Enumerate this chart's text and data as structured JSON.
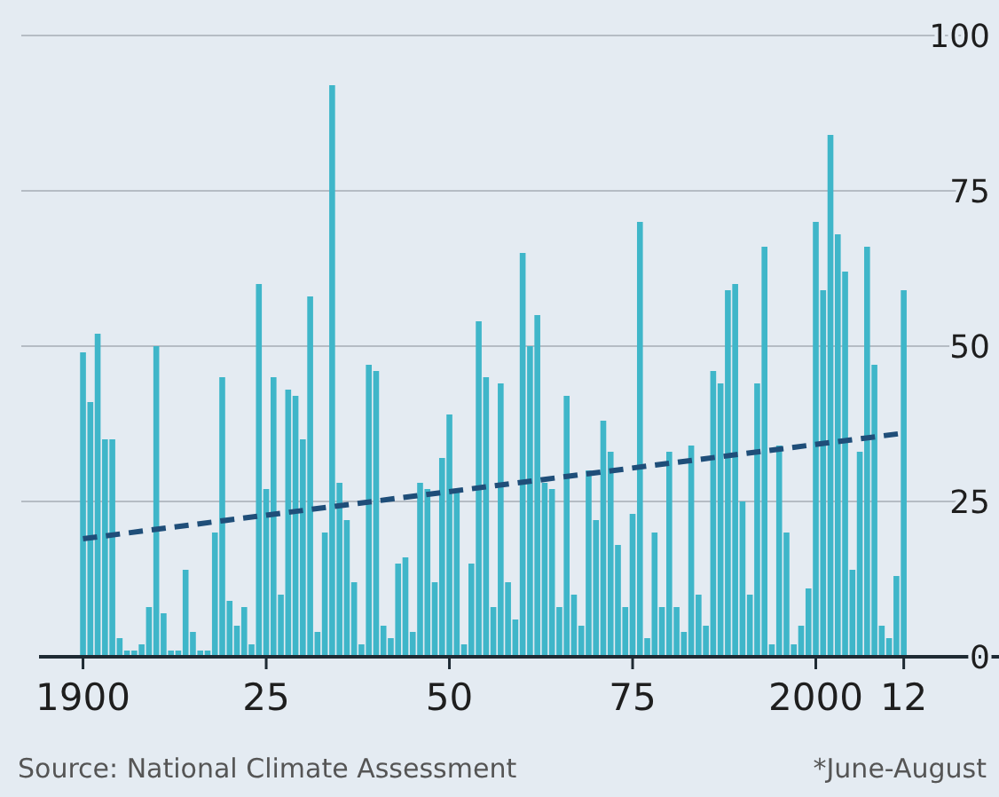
{
  "chart_data": {
    "type": "bar",
    "x": [
      1900,
      1901,
      1902,
      1903,
      1904,
      1905,
      1906,
      1907,
      1908,
      1909,
      1910,
      1911,
      1912,
      1913,
      1914,
      1915,
      1916,
      1917,
      1918,
      1919,
      1920,
      1921,
      1922,
      1923,
      1924,
      1925,
      1926,
      1927,
      1928,
      1929,
      1930,
      1931,
      1932,
      1933,
      1934,
      1935,
      1936,
      1937,
      1938,
      1939,
      1940,
      1941,
      1942,
      1943,
      1944,
      1945,
      1946,
      1947,
      1948,
      1949,
      1950,
      1951,
      1952,
      1953,
      1954,
      1955,
      1956,
      1957,
      1958,
      1959,
      1960,
      1961,
      1962,
      1963,
      1964,
      1965,
      1966,
      1967,
      1968,
      1969,
      1970,
      1971,
      1972,
      1973,
      1974,
      1975,
      1976,
      1977,
      1978,
      1979,
      1980,
      1981,
      1982,
      1983,
      1984,
      1985,
      1986,
      1987,
      1988,
      1989,
      1990,
      1991,
      1992,
      1993,
      1994,
      1995,
      1996,
      1997,
      1998,
      1999,
      2000,
      2001,
      2002,
      2003,
      2004,
      2005,
      2006,
      2007,
      2008,
      2009,
      2010,
      2011,
      2012
    ],
    "series": [
      {
        "color": "#3fb6c9",
        "values": [
          49,
          41,
          52,
          35,
          35,
          3,
          1,
          1,
          2,
          8,
          50,
          7,
          1,
          1,
          14,
          4,
          1,
          1,
          20,
          45,
          9,
          5,
          8,
          2,
          60,
          27,
          45,
          10,
          43,
          42,
          35,
          58,
          4,
          20,
          92,
          28,
          22,
          12,
          2,
          47,
          46,
          5,
          3,
          15,
          16,
          4,
          28,
          27,
          12,
          32,
          39,
          27,
          2,
          15,
          54,
          45,
          8,
          44,
          12,
          6,
          65,
          50,
          55,
          28,
          27,
          8,
          42,
          10,
          5,
          30,
          22,
          38,
          33,
          18,
          8,
          23,
          70,
          3,
          20,
          8,
          33,
          8,
          4,
          34,
          10,
          5,
          46,
          44,
          59,
          60,
          25,
          10,
          44,
          66,
          2,
          34,
          20,
          2,
          5,
          11,
          70,
          59,
          84,
          68,
          62,
          14,
          33,
          66,
          47,
          5,
          3,
          13,
          59
        ]
      },
      {
        "type": "line",
        "x": [
          1900,
          2012
        ],
        "values": [
          19,
          36
        ],
        "color": "#1f4e79",
        "line_style": "dashed"
      }
    ],
    "xlim": [
      1894,
      2025
    ],
    "xticks": [
      1900,
      {
        "value": 1925,
        "label": "25"
      },
      {
        "value": 1950,
        "label": "50"
      },
      {
        "value": 1975,
        "label": "75"
      },
      2000,
      {
        "value": 2012,
        "label": "12"
      }
    ],
    "ylim": [
      0,
      100
    ],
    "yticks": [
      0,
      25,
      50,
      75,
      100
    ],
    "grid": "y",
    "annotations": [
      "Source: National Climate Assessment",
      "*June-August"
    ]
  }
}
